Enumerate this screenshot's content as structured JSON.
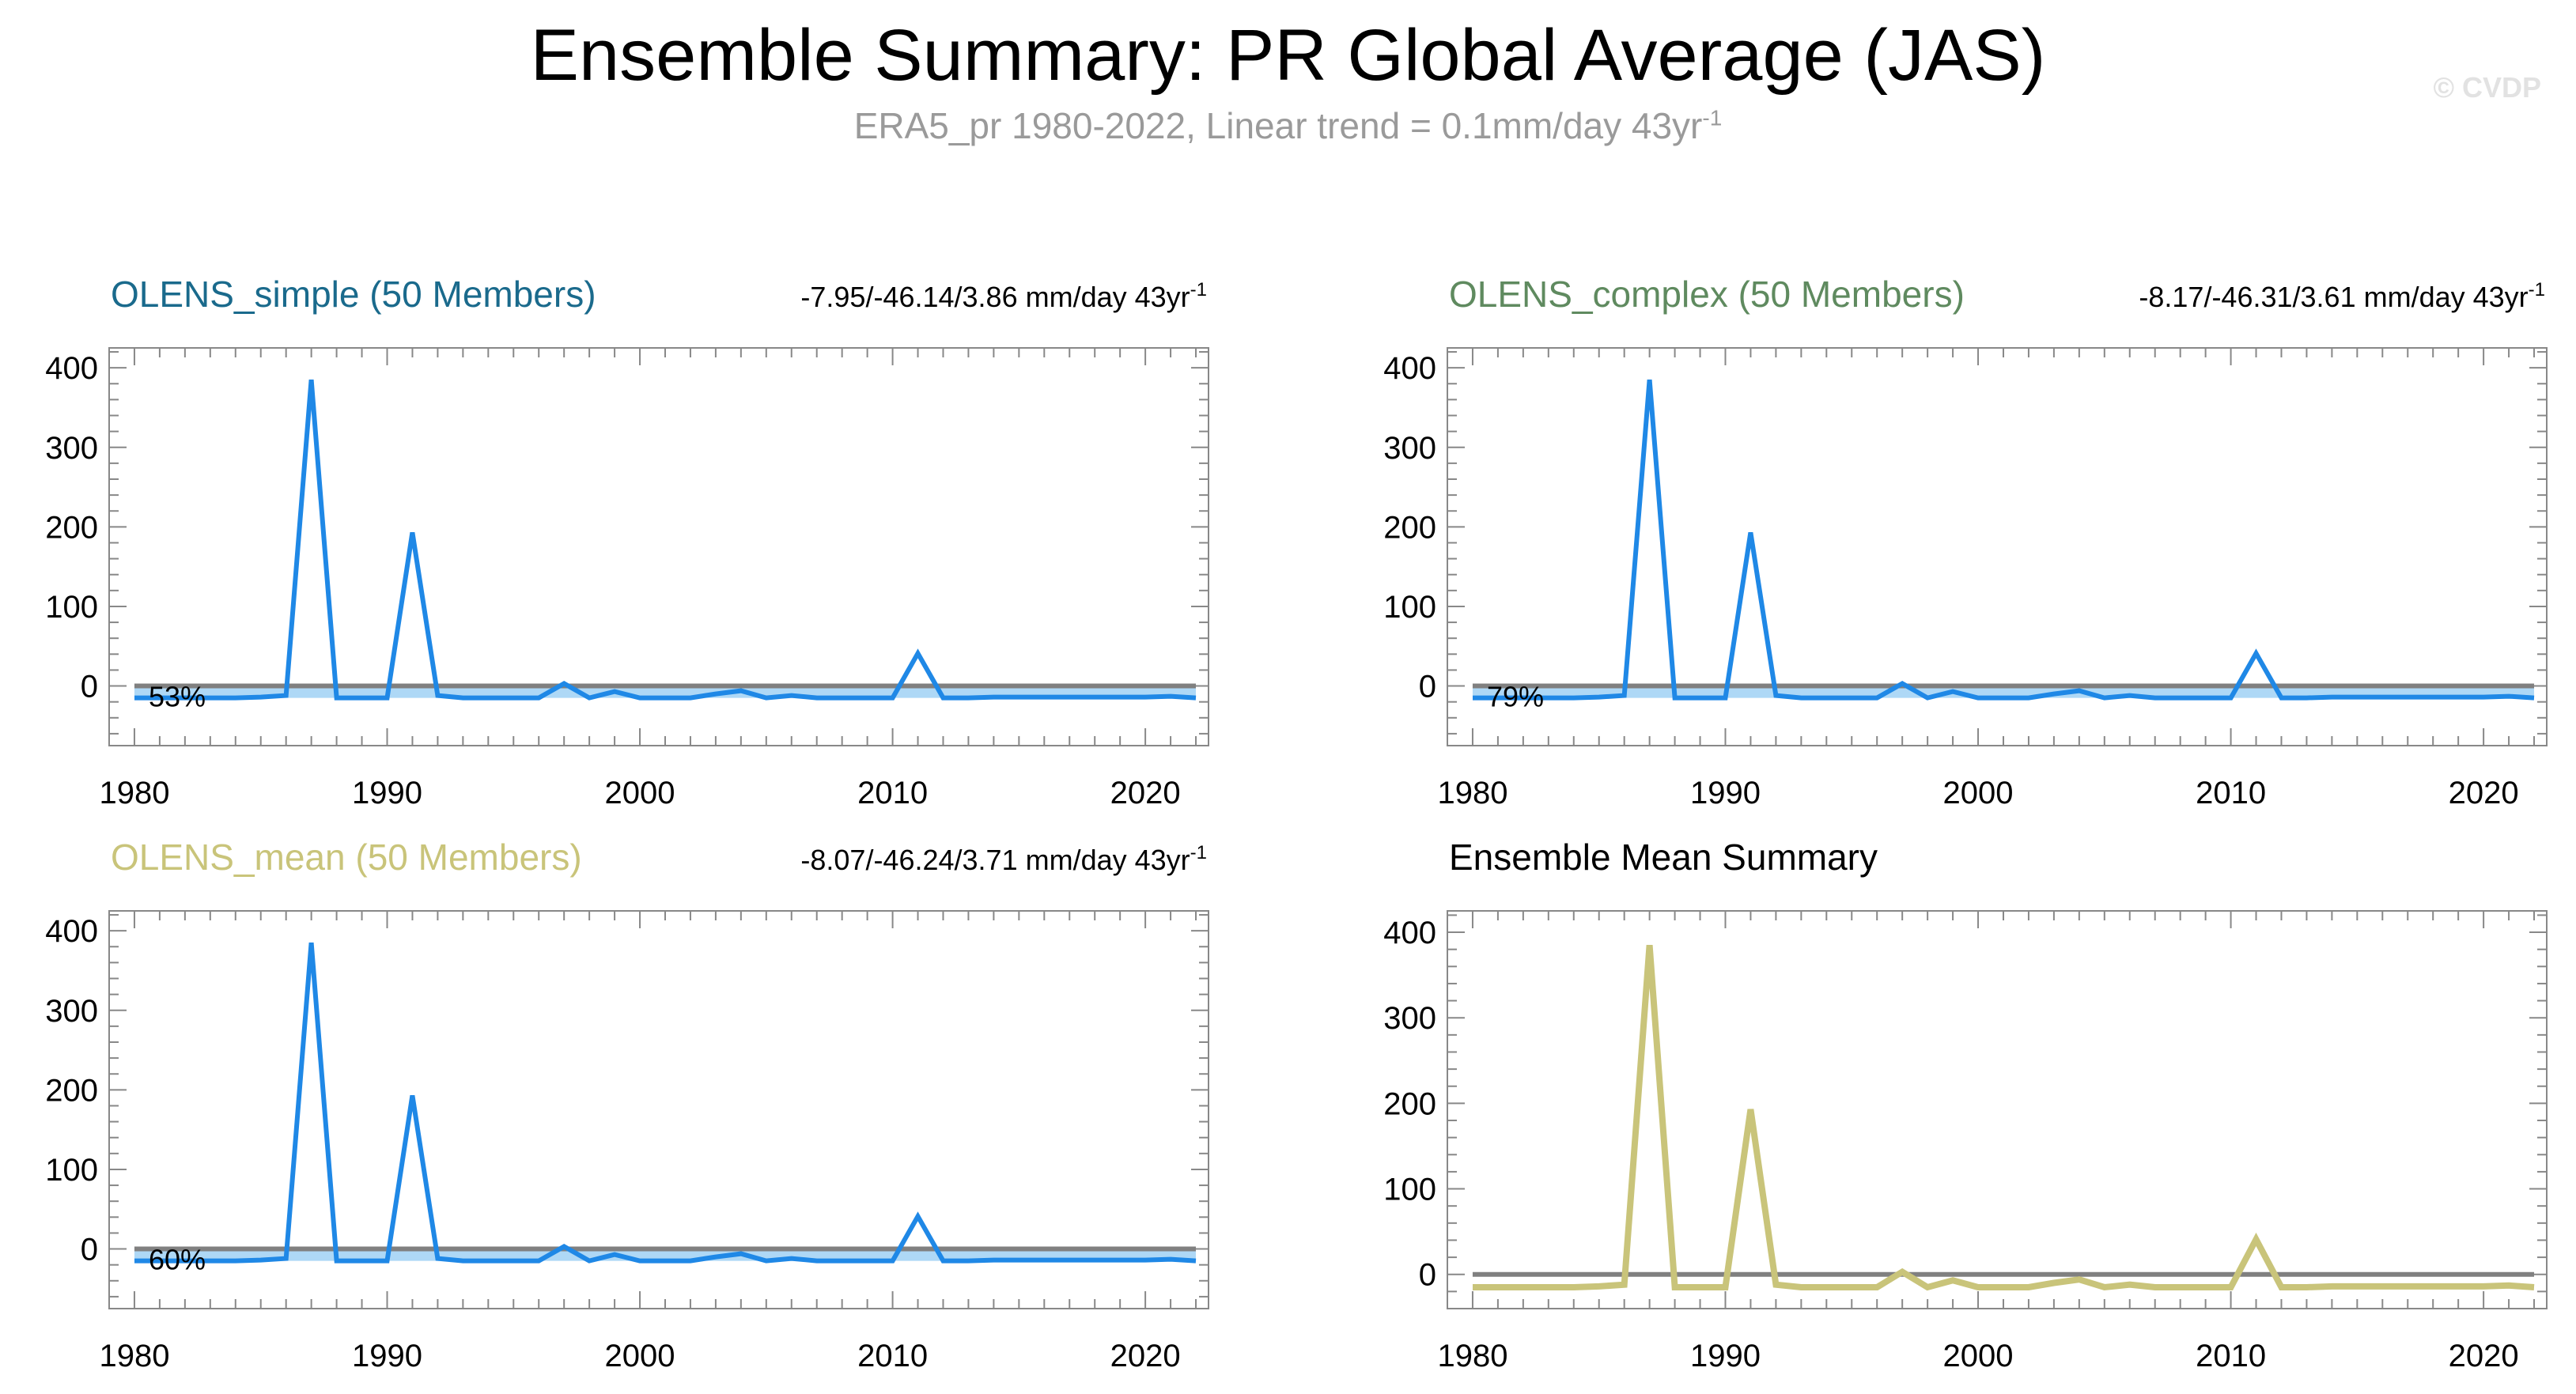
{
  "title": "Ensemble Summary: PR Global Average (JAS)",
  "subtitle": {
    "text": "ERA5_pr 1980-2022, Linear trend = 0.1mm/day 43yr",
    "sup": "-1"
  },
  "watermark": "© CVDP",
  "colors": {
    "simple_title": "#1a6a8c",
    "complex_title": "#5f8a5f",
    "mean_title": "#c9c47a",
    "summary_title": "#000000",
    "member_line": "#1f88e6",
    "spread_band": "#aed8f6",
    "obs_line": "#808080",
    "ens_mean_line": "#c9c47a",
    "axis": "#888888"
  },
  "chart_data": [
    {
      "type": "line",
      "panel": "top-left",
      "title": "OLENS_simple (50 Members)",
      "trend_label": "-7.95/-46.14/3.86 mm/day 43yr",
      "trend_sup": "-1",
      "percent_label": "53%",
      "ylim": [
        -75,
        425
      ],
      "yticks": [
        0,
        100,
        200,
        300,
        400
      ],
      "xlim": [
        1979,
        2022.5
      ],
      "xticks": [
        1980,
        1990,
        2000,
        2010,
        2020
      ],
      "series": [
        {
          "name": "ensemble member",
          "x_start": 1980,
          "values": [
            -15,
            -15,
            -15,
            -15,
            -15,
            -14,
            -12,
            385,
            -15,
            -15,
            -15,
            193,
            -12,
            -15,
            -15,
            -15,
            -15,
            3,
            -15,
            -7,
            -15,
            -15,
            -15,
            -10,
            -6,
            -15,
            -12,
            -15,
            -15,
            -15,
            -15,
            41,
            -15,
            -15,
            -14,
            -14,
            -14,
            -14,
            -14,
            -14,
            -14,
            -13,
            -15
          ]
        },
        {
          "name": "ERA5 observed",
          "x": [
            1980,
            2022
          ],
          "values": [
            0,
            0
          ]
        }
      ],
      "band": {
        "lower": -15,
        "upper": -2
      }
    },
    {
      "type": "line",
      "panel": "top-right",
      "title": "OLENS_complex (50 Members)",
      "trend_label": "-8.17/-46.31/3.61 mm/day 43yr",
      "trend_sup": "-1",
      "percent_label": "79%",
      "ylim": [
        -75,
        425
      ],
      "yticks": [
        0,
        100,
        200,
        300,
        400
      ],
      "xlim": [
        1979,
        2022.5
      ],
      "xticks": [
        1980,
        1990,
        2000,
        2010,
        2020
      ],
      "series": [
        {
          "name": "ensemble member",
          "x_start": 1980,
          "values": [
            -15,
            -15,
            -15,
            -15,
            -15,
            -14,
            -12,
            385,
            -15,
            -15,
            -15,
            193,
            -12,
            -15,
            -15,
            -15,
            -15,
            3,
            -15,
            -7,
            -15,
            -15,
            -15,
            -10,
            -6,
            -15,
            -12,
            -15,
            -15,
            -15,
            -15,
            41,
            -15,
            -15,
            -14,
            -14,
            -14,
            -14,
            -14,
            -14,
            -14,
            -13,
            -15
          ]
        },
        {
          "name": "ERA5 observed",
          "x": [
            1980,
            2022
          ],
          "values": [
            0,
            0
          ]
        }
      ],
      "band": {
        "lower": -15,
        "upper": -2
      }
    },
    {
      "type": "line",
      "panel": "bottom-left",
      "title": "OLENS_mean (50 Members)",
      "trend_label": "-8.07/-46.24/3.71 mm/day 43yr",
      "trend_sup": "-1",
      "percent_label": "60%",
      "ylim": [
        -75,
        425
      ],
      "yticks": [
        0,
        100,
        200,
        300,
        400
      ],
      "xlim": [
        1979,
        2022.5
      ],
      "xticks": [
        1980,
        1990,
        2000,
        2010,
        2020
      ],
      "series": [
        {
          "name": "ensemble member",
          "x_start": 1980,
          "values": [
            -15,
            -15,
            -15,
            -15,
            -15,
            -14,
            -12,
            385,
            -15,
            -15,
            -15,
            193,
            -12,
            -15,
            -15,
            -15,
            -15,
            3,
            -15,
            -7,
            -15,
            -15,
            -15,
            -10,
            -6,
            -15,
            -12,
            -15,
            -15,
            -15,
            -15,
            41,
            -15,
            -15,
            -14,
            -14,
            -14,
            -14,
            -14,
            -14,
            -14,
            -13,
            -15
          ]
        },
        {
          "name": "ERA5 observed",
          "x": [
            1980,
            2022
          ],
          "values": [
            0,
            0
          ]
        }
      ],
      "band": {
        "lower": -15,
        "upper": -2
      }
    },
    {
      "type": "line",
      "panel": "bottom-right",
      "title": "Ensemble Mean Summary",
      "trend_label": "",
      "trend_sup": "",
      "percent_label": "",
      "ylim": [
        -40,
        425
      ],
      "yticks": [
        0,
        100,
        200,
        300,
        400
      ],
      "xlim": [
        1979,
        2022.5
      ],
      "xticks": [
        1980,
        1990,
        2000,
        2010,
        2020
      ],
      "series": [
        {
          "name": "ensemble mean",
          "x_start": 1980,
          "values": [
            -15,
            -15,
            -15,
            -15,
            -15,
            -14,
            -12,
            385,
            -15,
            -15,
            -15,
            193,
            -12,
            -15,
            -15,
            -15,
            -15,
            3,
            -15,
            -7,
            -15,
            -15,
            -15,
            -10,
            -6,
            -15,
            -12,
            -15,
            -15,
            -15,
            -15,
            41,
            -15,
            -15,
            -14,
            -14,
            -14,
            -14,
            -14,
            -14,
            -14,
            -13,
            -15
          ]
        },
        {
          "name": "ERA5 observed",
          "x": [
            1980,
            2022
          ],
          "values": [
            0,
            0
          ]
        }
      ],
      "band": null
    }
  ]
}
